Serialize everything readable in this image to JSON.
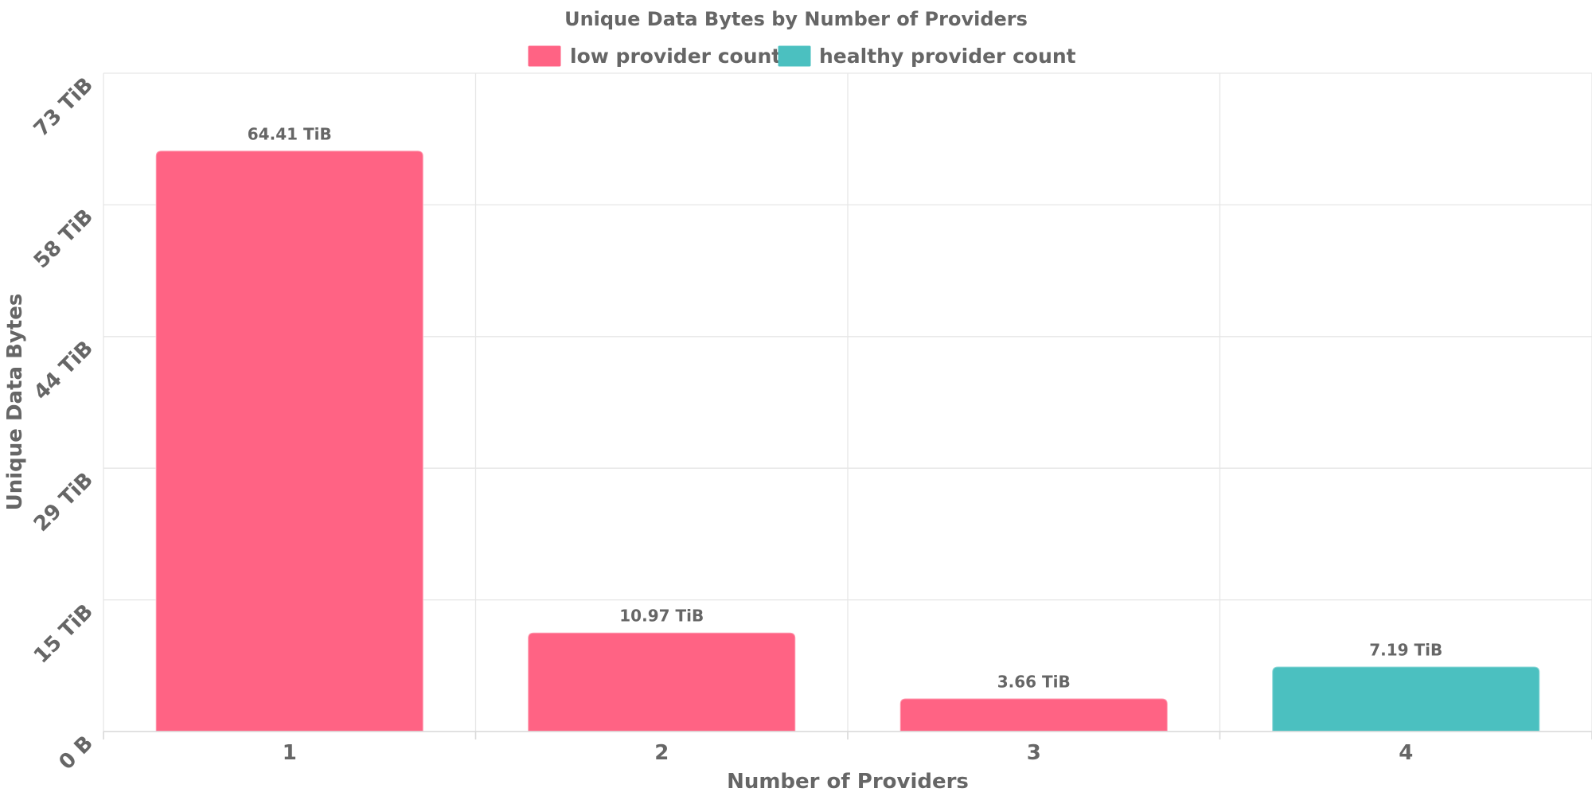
{
  "chart_data": {
    "type": "bar",
    "title": "Unique Data Bytes by Number of Providers",
    "xlabel": "Number of Providers",
    "ylabel": "Unique Data Bytes",
    "categories": [
      "1",
      "2",
      "3",
      "4"
    ],
    "values": [
      64.41,
      10.97,
      3.66,
      7.19
    ],
    "value_unit": "TiB",
    "data_labels": [
      "64.41 TiB",
      "10.97 TiB",
      "3.66 TiB",
      "7.19 TiB"
    ],
    "bar_series": [
      "low provider count",
      "low provider count",
      "low provider count",
      "healthy provider count"
    ],
    "ylim": [
      0,
      73
    ],
    "y_ticks": [
      {
        "value": 0,
        "label": "0 B"
      },
      {
        "value": 14.6,
        "label": "15 TiB"
      },
      {
        "value": 29.2,
        "label": "29 TiB"
      },
      {
        "value": 43.8,
        "label": "44 TiB"
      },
      {
        "value": 58.4,
        "label": "58 TiB"
      },
      {
        "value": 73,
        "label": "73 TiB"
      }
    ],
    "legend": {
      "placement": "top-center",
      "entries": [
        {
          "name": "low provider count",
          "color": "#ff6384"
        },
        {
          "name": "healthy provider count",
          "color": "#4bc0c0"
        }
      ]
    },
    "grid": true
  }
}
